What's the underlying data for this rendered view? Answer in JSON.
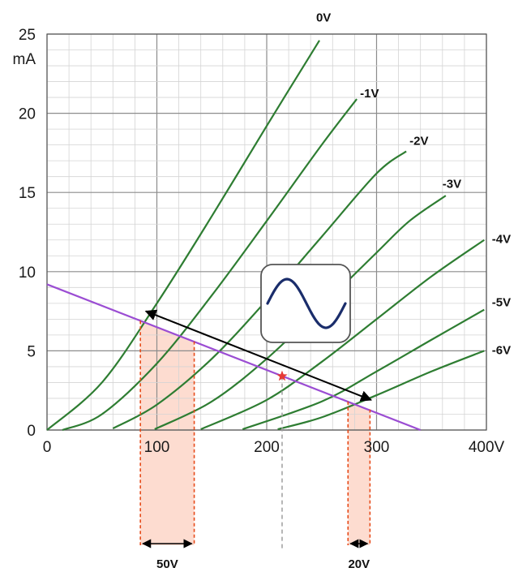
{
  "chart_data": {
    "type": "line",
    "title": "",
    "xlabel": "",
    "ylabel": "",
    "x_unit": "V",
    "y_unit": "mA",
    "xlim": [
      0,
      400
    ],
    "ylim": [
      0,
      25
    ],
    "x_ticks": [
      {
        "value": 0,
        "label": "0"
      },
      {
        "value": 100,
        "label": "100"
      },
      {
        "value": 200,
        "label": "200"
      },
      {
        "value": 300,
        "label": "300"
      },
      {
        "value": 400,
        "label": "400V"
      }
    ],
    "y_ticks": [
      {
        "value": 0,
        "label": "0"
      },
      {
        "value": 5,
        "label": "5"
      },
      {
        "value": 10,
        "label": "10"
      },
      {
        "value": 15,
        "label": "15"
      },
      {
        "value": 20,
        "label": "20"
      },
      {
        "value": 25,
        "label": "25"
      }
    ],
    "y_unit_label": "mA",
    "grid": true,
    "grid_minor_x": 20,
    "grid_minor_y": 1,
    "series": [
      {
        "name": "0V",
        "label_at": [
          245,
          25.8
        ],
        "points": [
          [
            0,
            0
          ],
          [
            50,
            3.0
          ],
          [
            100,
            8.0
          ],
          [
            150,
            13.5
          ],
          [
            200,
            19.2
          ],
          [
            248,
            24.6
          ]
        ]
      },
      {
        "name": "-1V",
        "label_at": [
          285,
          21.0
        ],
        "points": [
          [
            14,
            0
          ],
          [
            50,
            1.0
          ],
          [
            100,
            4.2
          ],
          [
            150,
            8.5
          ],
          [
            200,
            13.2
          ],
          [
            250,
            18.0
          ],
          [
            282,
            20.9
          ]
        ]
      },
      {
        "name": "-2V",
        "label_at": [
          330,
          18.0
        ],
        "points": [
          [
            60,
            0.1
          ],
          [
            100,
            1.6
          ],
          [
            150,
            4.5
          ],
          [
            200,
            8.2
          ],
          [
            250,
            12.2
          ],
          [
            300,
            16.2
          ],
          [
            327,
            17.6
          ]
        ]
      },
      {
        "name": "-3V",
        "label_at": [
          360,
          15.3
        ],
        "points": [
          [
            98,
            0.05
          ],
          [
            150,
            1.8
          ],
          [
            200,
            4.5
          ],
          [
            250,
            7.8
          ],
          [
            300,
            11.2
          ],
          [
            330,
            13.2
          ],
          [
            363,
            14.8
          ]
        ]
      },
      {
        "name": "-4V",
        "label_at": [
          405,
          11.8
        ],
        "points": [
          [
            140,
            0.05
          ],
          [
            200,
            1.9
          ],
          [
            250,
            4.3
          ],
          [
            300,
            7.0
          ],
          [
            350,
            9.7
          ],
          [
            398,
            12.0
          ]
        ]
      },
      {
        "name": "-5V",
        "label_at": [
          405,
          7.8
        ],
        "points": [
          [
            178,
            0.05
          ],
          [
            250,
            1.8
          ],
          [
            300,
            3.7
          ],
          [
            350,
            5.7
          ],
          [
            398,
            7.6
          ]
        ]
      },
      {
        "name": "-6V",
        "label_at": [
          405,
          4.8
        ],
        "points": [
          [
            210,
            0.05
          ],
          [
            250,
            0.8
          ],
          [
            300,
            2.2
          ],
          [
            350,
            3.7
          ],
          [
            398,
            5.0
          ]
        ]
      }
    ],
    "curve_color": "#2e7d32",
    "load_line": {
      "points": [
        [
          0,
          9.2
        ],
        [
          340,
          0
        ]
      ],
      "color": "#9b4dd3"
    },
    "operating_point": {
      "x": 214,
      "y": 3.4,
      "color": "#e53935"
    },
    "swing_arrow": {
      "from": [
        90,
        7.5
      ],
      "to": [
        295,
        1.9
      ],
      "color": "#000000"
    },
    "input_swing_bands": [
      {
        "x_from": 85,
        "x_to": 134,
        "y_top_from": 6.9,
        "y_top_to": 5.6,
        "label": "50V"
      },
      {
        "x_from": 274,
        "x_to": 294,
        "y_top_from": 1.8,
        "y_top_to": 1.3,
        "label": "20V"
      }
    ],
    "band_fill": "#fddcd0",
    "band_line_color": "#e64a19",
    "operating_guide_color": "#9e9e9e",
    "signal_icon": "sine-wave-icon",
    "signal_icon_color": "#1a2d6b"
  }
}
